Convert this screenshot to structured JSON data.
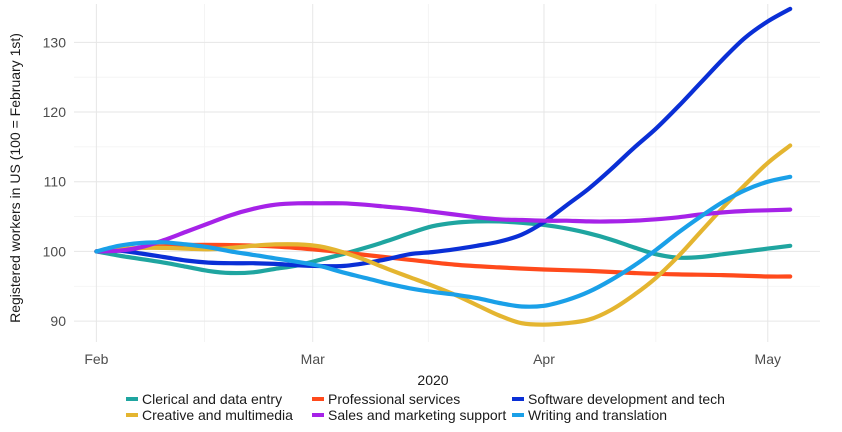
{
  "chart_data": {
    "type": "line",
    "title": "",
    "xlabel": "2020",
    "ylabel": "Registered workers in US (100 = February 1st)",
    "x_ticks": [
      {
        "label": "Feb",
        "day": 0
      },
      {
        "label": "Mar",
        "day": 29
      },
      {
        "label": "Apr",
        "day": 60
      },
      {
        "label": "May",
        "day": 90
      }
    ],
    "y_ticks": [
      90,
      100,
      110,
      120,
      130
    ],
    "ylim": [
      87,
      135.5
    ],
    "xlim": [
      -3,
      97
    ],
    "grid": true,
    "legend_position": "bottom",
    "series": [
      {
        "name": "Clerical and data entry",
        "color": "#1fa5a0",
        "x": [
          0,
          3,
          6,
          9,
          12,
          15,
          18,
          21,
          24,
          27,
          30,
          33,
          36,
          39,
          42,
          45,
          48,
          51,
          54,
          57,
          60,
          63,
          66,
          69,
          72,
          75,
          78,
          81,
          84,
          87,
          90,
          93
        ],
        "y": [
          100,
          99.4,
          98.9,
          98.4,
          97.8,
          97.2,
          96.9,
          97.0,
          97.5,
          98.0,
          98.8,
          99.6,
          100.5,
          101.5,
          102.6,
          103.6,
          104.1,
          104.3,
          104.3,
          104.1,
          103.8,
          103.3,
          102.6,
          101.7,
          100.6,
          99.6,
          99.1,
          99.2,
          99.6,
          100.0,
          100.4,
          100.8
        ]
      },
      {
        "name": "Professional services",
        "color": "#ff4a1c",
        "x": [
          0,
          6,
          12,
          18,
          24,
          30,
          36,
          42,
          48,
          54,
          60,
          66,
          72,
          78,
          84,
          90,
          93
        ],
        "y": [
          100,
          100.5,
          100.9,
          100.9,
          100.7,
          100.2,
          99.5,
          98.8,
          98.1,
          97.7,
          97.4,
          97.2,
          96.9,
          96.7,
          96.6,
          96.4,
          96.4
        ]
      },
      {
        "name": "Software development and tech",
        "color": "#0a2fd6",
        "x": [
          0,
          3,
          6,
          9,
          12,
          15,
          18,
          21,
          24,
          27,
          30,
          33,
          36,
          39,
          42,
          45,
          48,
          51,
          54,
          57,
          60,
          63,
          66,
          69,
          72,
          75,
          78,
          81,
          84,
          87,
          90,
          93
        ],
        "y": [
          100,
          100.1,
          99.7,
          99.2,
          98.7,
          98.4,
          98.3,
          98.3,
          98.2,
          98.0,
          97.9,
          97.9,
          98.3,
          98.9,
          99.6,
          99.9,
          100.3,
          100.8,
          101.4,
          102.4,
          104.2,
          106.6,
          109.0,
          111.8,
          114.8,
          117.6,
          120.8,
          124.2,
          127.6,
          130.7,
          133.0,
          134.8
        ]
      },
      {
        "name": "Creative and multimedia",
        "color": "#e4b530",
        "x": [
          0,
          3,
          6,
          9,
          12,
          15,
          18,
          21,
          24,
          27,
          30,
          33,
          36,
          39,
          42,
          45,
          48,
          51,
          54,
          57,
          60,
          63,
          66,
          69,
          72,
          75,
          78,
          81,
          84,
          87,
          90,
          93
        ],
        "y": [
          100,
          100.3,
          100.5,
          100.5,
          100.4,
          100.3,
          100.5,
          100.8,
          101.0,
          101.0,
          100.7,
          99.9,
          98.8,
          97.5,
          96.3,
          95.1,
          93.8,
          92.3,
          90.8,
          89.7,
          89.5,
          89.7,
          90.2,
          91.6,
          93.7,
          96.2,
          99.3,
          102.8,
          106.3,
          109.6,
          112.7,
          115.2
        ]
      },
      {
        "name": "Sales and marketing support",
        "color": "#a622e8",
        "x": [
          0,
          3,
          6,
          9,
          12,
          15,
          18,
          21,
          24,
          27,
          30,
          33,
          36,
          39,
          42,
          45,
          48,
          51,
          54,
          57,
          60,
          63,
          66,
          69,
          72,
          75,
          78,
          81,
          84,
          87,
          90,
          93
        ],
        "y": [
          100,
          100.1,
          100.6,
          101.6,
          102.8,
          104.0,
          105.2,
          106.1,
          106.7,
          106.9,
          106.9,
          106.9,
          106.7,
          106.4,
          106.1,
          105.7,
          105.3,
          104.9,
          104.6,
          104.5,
          104.4,
          104.4,
          104.3,
          104.3,
          104.4,
          104.6,
          104.9,
          105.3,
          105.6,
          105.8,
          105.9,
          106.0
        ]
      },
      {
        "name": "Writing and translation",
        "color": "#1aa0e8",
        "x": [
          0,
          3,
          6,
          9,
          12,
          15,
          18,
          21,
          24,
          27,
          30,
          33,
          36,
          39,
          42,
          45,
          48,
          51,
          54,
          57,
          60,
          63,
          66,
          69,
          72,
          75,
          78,
          81,
          84,
          87,
          90,
          93
        ],
        "y": [
          100,
          100.8,
          101.2,
          101.3,
          101.0,
          100.6,
          100.0,
          99.5,
          99.0,
          98.5,
          97.9,
          97.0,
          96.2,
          95.4,
          94.7,
          94.2,
          93.8,
          93.3,
          92.6,
          92.1,
          92.2,
          93.0,
          94.2,
          95.9,
          97.9,
          100.2,
          102.7,
          105.0,
          107.1,
          108.8,
          110.0,
          110.7
        ]
      }
    ],
    "legend_rows": [
      [
        "Clerical and data entry",
        "Professional services",
        "Software development and tech"
      ],
      [
        "Creative and multimedia",
        "Sales and marketing support",
        "Writing and translation"
      ]
    ]
  }
}
